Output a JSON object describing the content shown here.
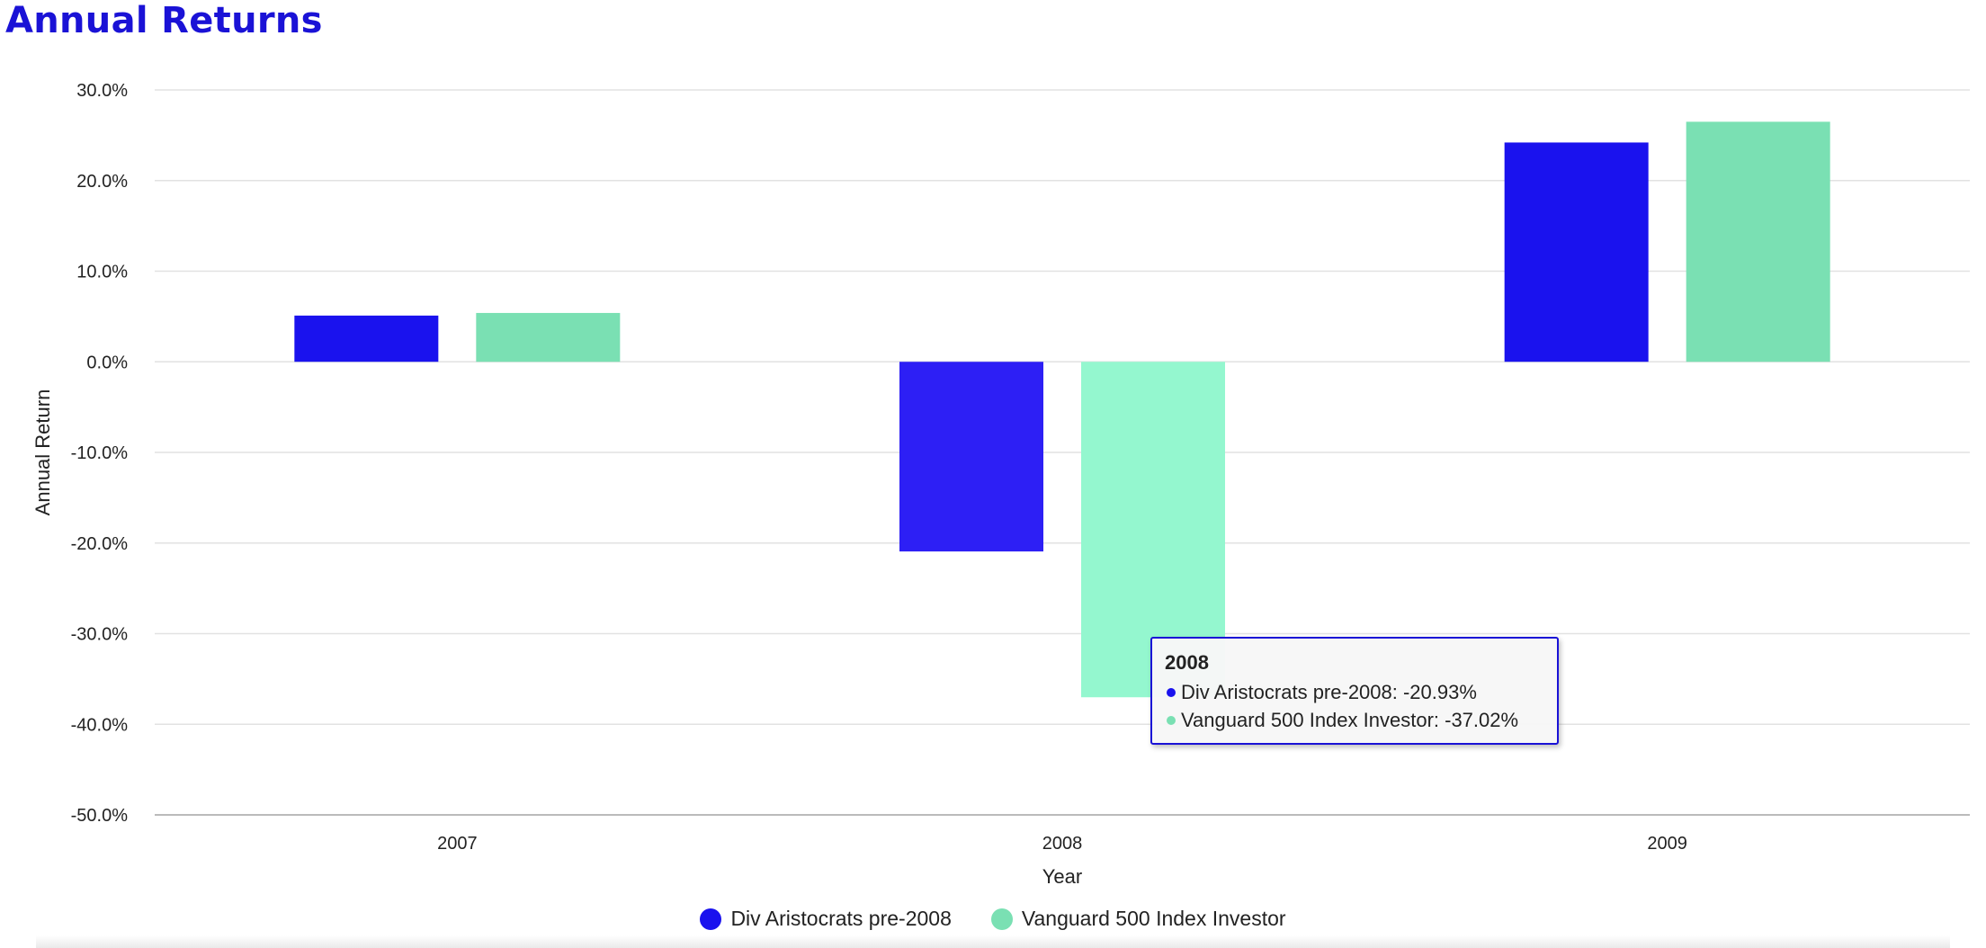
{
  "chart_data": {
    "type": "bar",
    "title": "Annual Returns",
    "xlabel": "Year",
    "ylabel": "Annual Return",
    "categories": [
      "2007",
      "2008",
      "2009"
    ],
    "series": [
      {
        "name": "Div Aristocrats pre-2008",
        "values": [
          5.1,
          -20.93,
          24.2
        ],
        "color": "#1a12ee"
      },
      {
        "name": "Vanguard 500 Index Investor",
        "values": [
          5.39,
          -37.02,
          26.49
        ],
        "color": "#7ae0b3"
      }
    ],
    "ylim": [
      -50,
      30
    ],
    "yticks": [
      "30.0%",
      "20.0%",
      "10.0%",
      "0.0%",
      "-10.0%",
      "-20.0%",
      "-30.0%",
      "-40.0%",
      "-50.0%"
    ],
    "ytick_values": [
      30,
      20,
      10,
      0,
      -10,
      -20,
      -30,
      -40,
      -50
    ],
    "grid": true,
    "legend_position": "bottom-center",
    "highlighted_category": "2008",
    "highlight_colors": [
      "#2d1ff5",
      "#94f7cf"
    ]
  },
  "tooltip": {
    "title": "2008",
    "rows": [
      {
        "text": "Div Aristocrats pre-2008: -20.93%",
        "color": "#1a12ee"
      },
      {
        "text": "Vanguard 500 Index Investor: -37.02%",
        "color": "#7ae0b3"
      }
    ]
  }
}
